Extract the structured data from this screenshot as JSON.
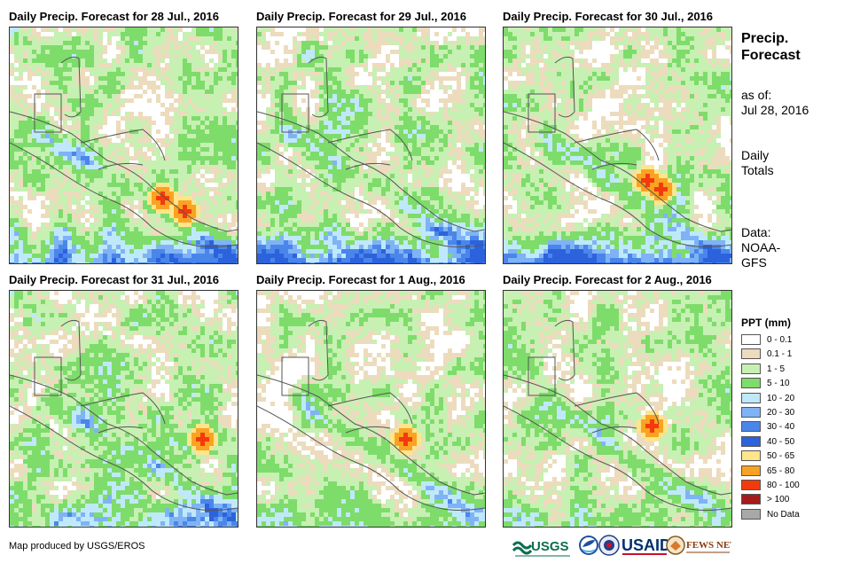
{
  "panels": [
    {
      "title": "Daily Precip. Forecast for 28 Jul., 2016"
    },
    {
      "title": "Daily Precip. Forecast for 29 Jul., 2016"
    },
    {
      "title": "Daily Precip. Forecast for 30 Jul., 2016"
    },
    {
      "title": "Daily Precip. Forecast for 31 Jul., 2016"
    },
    {
      "title": "Daily Precip. Forecast for 1 Aug., 2016"
    },
    {
      "title": "Daily Precip. Forecast for 2 Aug., 2016"
    }
  ],
  "sidebar": {
    "title_line1": "Precip.",
    "title_line2": "Forecast",
    "asof_label": "as of:",
    "asof_date": "Jul 28, 2016",
    "totals_line1": "Daily",
    "totals_line2": "Totals",
    "data_label": "Data:",
    "data_line1": "NOAA-",
    "data_line2": "GFS"
  },
  "legend": {
    "title": "PPT (mm)",
    "items": [
      {
        "label": "0 - 0.1",
        "color": "#ffffff"
      },
      {
        "label": "0.1 - 1",
        "color": "#ecdcbd"
      },
      {
        "label": "1 - 5",
        "color": "#c7f0b3"
      },
      {
        "label": "5 - 10",
        "color": "#7edc6b"
      },
      {
        "label": "10 - 20",
        "color": "#bfe9fa"
      },
      {
        "label": "20 - 30",
        "color": "#7fb3f5"
      },
      {
        "label": "30 - 40",
        "color": "#4a86ea"
      },
      {
        "label": "40 - 50",
        "color": "#2c62dc"
      },
      {
        "label": "50 - 65",
        "color": "#fee58b"
      },
      {
        "label": "65 - 80",
        "color": "#f9a323"
      },
      {
        "label": "80 - 100",
        "color": "#f43a0d"
      },
      {
        "label": "> 100",
        "color": "#a51b1b"
      },
      {
        "label": "No Data",
        "color": "#a8a8a8"
      }
    ]
  },
  "credit": "Map produced by USGS/EROS",
  "logos": {
    "usgs": "USGS",
    "usaid": "USAID",
    "fewsnet": "FEWS NET"
  }
}
